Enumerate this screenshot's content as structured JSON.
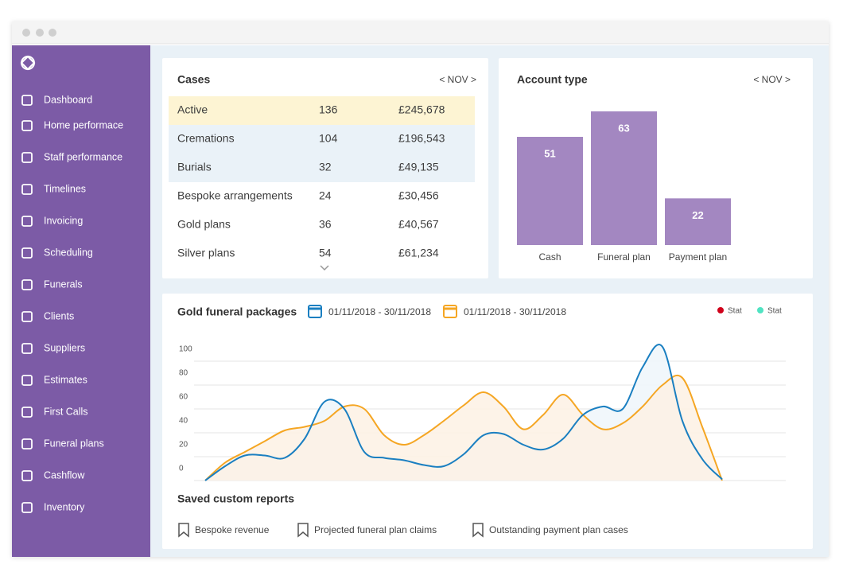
{
  "sidebar": {
    "items": [
      "Dashboard",
      "Home performace",
      "Staff performance",
      "Timelines",
      "Invoicing",
      "Scheduling",
      "Funerals",
      "Clients",
      "Suppliers",
      "Estimates",
      "First Calls",
      "Funeral plans",
      "Cashflow",
      "Inventory"
    ]
  },
  "cases": {
    "title": "Cases",
    "period": "< NOV >",
    "rows": [
      [
        "Active",
        "136",
        "£245,678"
      ],
      [
        "Cremations",
        "104",
        "£196,543"
      ],
      [
        "Burials",
        "32",
        "£49,135"
      ],
      [
        "Bespoke arrangements",
        "24",
        "£30,456"
      ],
      [
        "Gold plans",
        "36",
        "£40,567"
      ],
      [
        "Silver plans",
        "54",
        "£61,234"
      ]
    ]
  },
  "chart_data": [
    {
      "type": "bar",
      "title": "Account type",
      "period": "< NOV >",
      "categories": [
        "Cash",
        "Funeral plan",
        "Payment plan"
      ],
      "values": [
        51,
        63,
        22
      ],
      "color": "#a387c1"
    },
    {
      "type": "line",
      "title": "Gold funeral packages",
      "date_ranges": [
        {
          "text": "01/11/2018  - 30/11/2018",
          "color": "#1a7fc1"
        },
        {
          "text": "01/11/2018  - 30/11/2018",
          "color": "#f5a623"
        }
      ],
      "legend": [
        {
          "name": "Stat",
          "color": "#d0021b"
        },
        {
          "name": "Stat",
          "color": "#50e3c2"
        }
      ],
      "ylim": [
        0,
        120
      ],
      "yticks": [
        0,
        20,
        40,
        60,
        80,
        100
      ],
      "grid": true,
      "series": [
        {
          "color": "#1a7fc1",
          "fill": "#eef6fa",
          "values": [
            0,
            12,
            21,
            21,
            19,
            35,
            66,
            60,
            24,
            19,
            17,
            13,
            12,
            22,
            38,
            39,
            30,
            26,
            35,
            55,
            62,
            60,
            95,
            112,
            50,
            18,
            1
          ]
        },
        {
          "color": "#f5a623",
          "fill": "#fdf1e4",
          "values": [
            0,
            15,
            24,
            33,
            42,
            45,
            50,
            62,
            60,
            38,
            30,
            38,
            50,
            63,
            74,
            62,
            43,
            55,
            72,
            55,
            43,
            48,
            62,
            80,
            86,
            45,
            0
          ]
        }
      ]
    }
  ],
  "saved_reports": {
    "title": "Saved custom reports",
    "items": [
      "Bespoke revenue",
      "Projected funeral plan claims",
      "Outstanding payment plan cases"
    ]
  }
}
